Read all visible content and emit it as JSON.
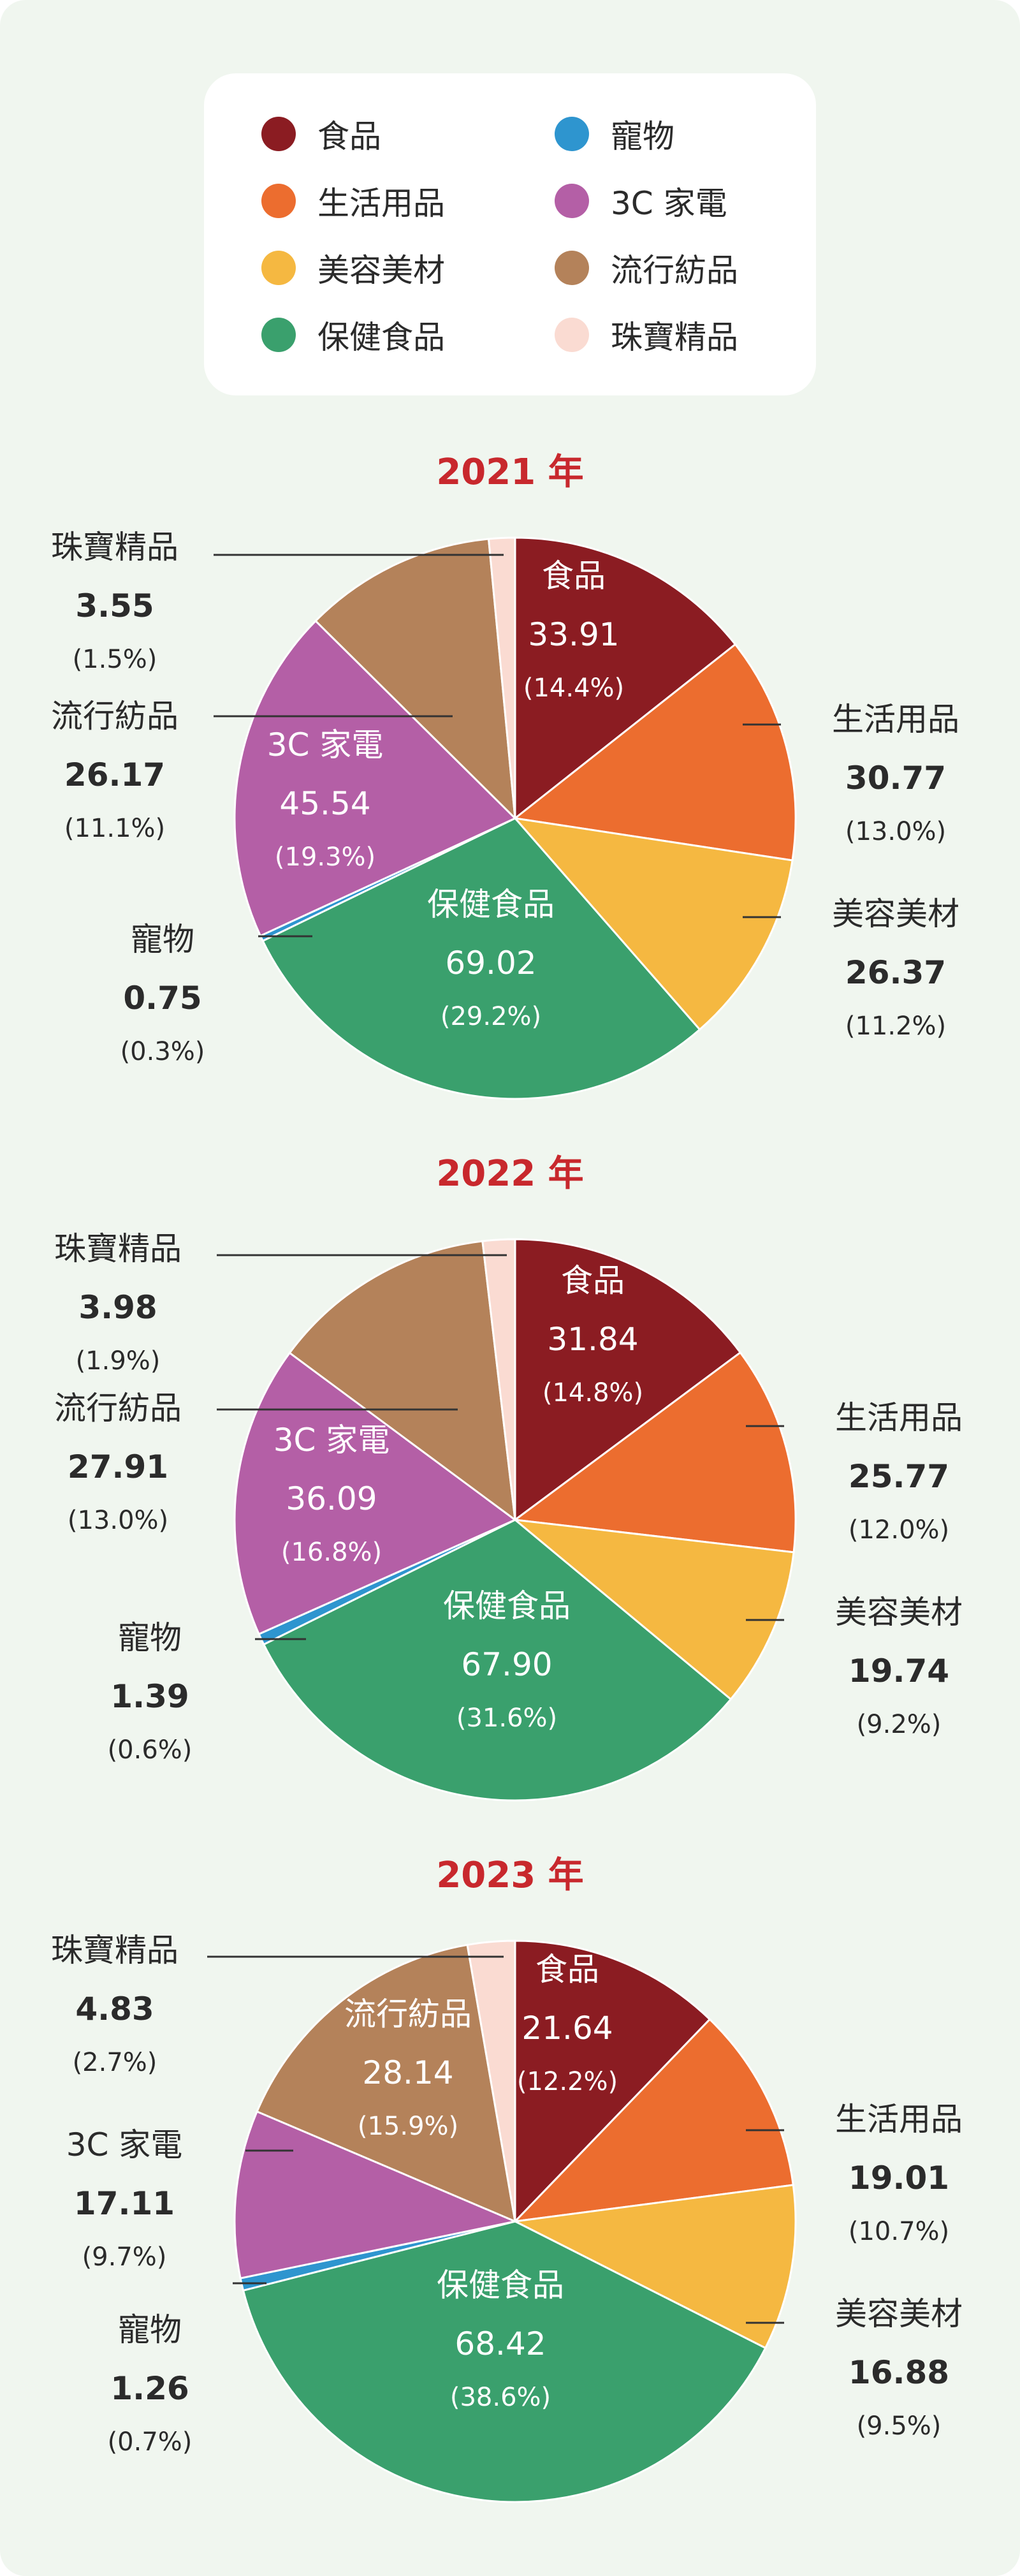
{
  "legend": [
    {
      "label": "食品",
      "color": "#8b1c22"
    },
    {
      "label": "寵物",
      "color": "#2e95cf"
    },
    {
      "label": "生活用品",
      "color": "#ec6d2f"
    },
    {
      "label": "3C 家電",
      "color": "#b45fa6"
    },
    {
      "label": "美容美材",
      "color": "#f5b841"
    },
    {
      "label": "流行紡品",
      "color": "#b4825a"
    },
    {
      "label": "保健食品",
      "color": "#3aa06d"
    },
    {
      "label": "珠寶精品",
      "color": "#fadbd2"
    }
  ],
  "chart_data": [
    {
      "type": "pie",
      "title": "2021 年",
      "slices": [
        {
          "label": "食品",
          "value": 33.91,
          "percent": "(14.4%)",
          "value_text": "33.91",
          "color": "#8b1c22"
        },
        {
          "label": "生活用品",
          "value": 30.77,
          "percent": "(13.0%)",
          "value_text": "30.77",
          "color": "#ec6d2f"
        },
        {
          "label": "美容美材",
          "value": 26.37,
          "percent": "(11.2%)",
          "value_text": "26.37",
          "color": "#f5b841"
        },
        {
          "label": "保健食品",
          "value": 69.02,
          "percent": "(29.2%)",
          "value_text": "69.02",
          "color": "#3aa06d"
        },
        {
          "label": "寵物",
          "value": 0.75,
          "percent": "(0.3%)",
          "value_text": "0.75",
          "color": "#2e95cf"
        },
        {
          "label": "3C 家電",
          "value": 45.54,
          "percent": "(19.3%)",
          "value_text": "45.54",
          "color": "#b45fa6"
        },
        {
          "label": "流行紡品",
          "value": 26.17,
          "percent": "(11.1%)",
          "value_text": "26.17",
          "color": "#b4825a"
        },
        {
          "label": "珠寶精品",
          "value": 3.55,
          "percent": "(1.5%)",
          "value_text": "3.55",
          "color": "#fadbd2"
        }
      ]
    },
    {
      "type": "pie",
      "title": "2022 年",
      "slices": [
        {
          "label": "食品",
          "value": 31.84,
          "percent": "(14.8%)",
          "value_text": "31.84",
          "color": "#8b1c22"
        },
        {
          "label": "生活用品",
          "value": 25.77,
          "percent": "(12.0%)",
          "value_text": "25.77",
          "color": "#ec6d2f"
        },
        {
          "label": "美容美材",
          "value": 19.74,
          "percent": "(9.2%)",
          "value_text": "19.74",
          "color": "#f5b841"
        },
        {
          "label": "保健食品",
          "value": 67.9,
          "percent": "(31.6%)",
          "value_text": "67.90",
          "color": "#3aa06d"
        },
        {
          "label": "寵物",
          "value": 1.39,
          "percent": "(0.6%)",
          "value_text": "1.39",
          "color": "#2e95cf"
        },
        {
          "label": "3C 家電",
          "value": 36.09,
          "percent": "(16.8%)",
          "value_text": "36.09",
          "color": "#b45fa6"
        },
        {
          "label": "流行紡品",
          "value": 27.91,
          "percent": "(13.0%)",
          "value_text": "27.91",
          "color": "#b4825a"
        },
        {
          "label": "珠寶精品",
          "value": 3.98,
          "percent": "(1.9%)",
          "value_text": "3.98",
          "color": "#fadbd2"
        }
      ]
    },
    {
      "type": "pie",
      "title": "2023 年",
      "slices": [
        {
          "label": "食品",
          "value": 21.64,
          "percent": "(12.2%)",
          "value_text": "21.64",
          "color": "#8b1c22"
        },
        {
          "label": "生活用品",
          "value": 19.01,
          "percent": "(10.7%)",
          "value_text": "19.01",
          "color": "#ec6d2f"
        },
        {
          "label": "美容美材",
          "value": 16.88,
          "percent": "(9.5%)",
          "value_text": "16.88",
          "color": "#f5b841"
        },
        {
          "label": "保健食品",
          "value": 68.42,
          "percent": "(38.6%)",
          "value_text": "68.42",
          "color": "#3aa06d"
        },
        {
          "label": "寵物",
          "value": 1.26,
          "percent": "(0.7%)",
          "value_text": "1.26",
          "color": "#2e95cf"
        },
        {
          "label": "3C 家電",
          "value": 17.11,
          "percent": "(9.7%)",
          "value_text": "17.11",
          "color": "#b45fa6"
        },
        {
          "label": "流行紡品",
          "value": 28.14,
          "percent": "(15.9%)",
          "value_text": "28.14",
          "color": "#b4825a"
        },
        {
          "label": "珠寶精品",
          "value": 4.83,
          "percent": "(2.7%)",
          "value_text": "4.83",
          "color": "#fadbd2"
        }
      ]
    }
  ]
}
